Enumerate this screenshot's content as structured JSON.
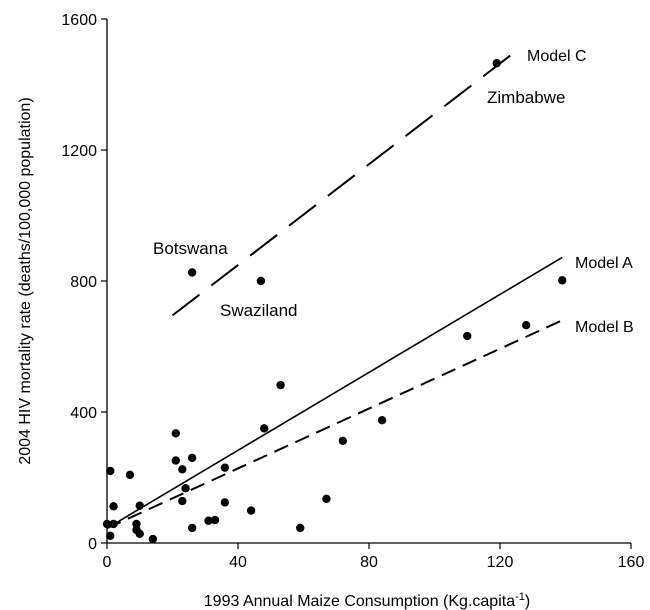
{
  "chart_data": {
    "type": "scatter",
    "xlabel": "1993 Annual Maize Consumption (Kg.capita",
    "xlabel_sup": "-1",
    "xlabel_close": ")",
    "ylabel": "2004 HIV mortality rate (deaths/100,000 population)",
    "xlim": [
      0,
      160
    ],
    "ylim": [
      0,
      1600
    ],
    "xticks": [
      "0",
      "40",
      "80",
      "120",
      "160"
    ],
    "yticks": [
      "0",
      "400",
      "800",
      "1200",
      "1600"
    ],
    "points": [
      {
        "x": 0,
        "y": 58
      },
      {
        "x": 1,
        "y": 220
      },
      {
        "x": 1,
        "y": 22
      },
      {
        "x": 2,
        "y": 112
      },
      {
        "x": 2,
        "y": 58
      },
      {
        "x": 7,
        "y": 208
      },
      {
        "x": 9,
        "y": 58
      },
      {
        "x": 9,
        "y": 40
      },
      {
        "x": 10,
        "y": 114
      },
      {
        "x": 10,
        "y": 28
      },
      {
        "x": 14,
        "y": 12
      },
      {
        "x": 21,
        "y": 335
      },
      {
        "x": 21,
        "y": 252
      },
      {
        "x": 23,
        "y": 225
      },
      {
        "x": 23,
        "y": 128
      },
      {
        "x": 24,
        "y": 167
      },
      {
        "x": 26,
        "y": 826
      },
      {
        "x": 26,
        "y": 260
      },
      {
        "x": 26,
        "y": 46
      },
      {
        "x": 31,
        "y": 68
      },
      {
        "x": 33,
        "y": 70
      },
      {
        "x": 36,
        "y": 230
      },
      {
        "x": 36,
        "y": 124
      },
      {
        "x": 44,
        "y": 99
      },
      {
        "x": 47,
        "y": 800
      },
      {
        "x": 48,
        "y": 350
      },
      {
        "x": 53,
        "y": 482
      },
      {
        "x": 59,
        "y": 46
      },
      {
        "x": 67,
        "y": 135
      },
      {
        "x": 72,
        "y": 312
      },
      {
        "x": 84,
        "y": 375
      },
      {
        "x": 110,
        "y": 632
      },
      {
        "x": 119,
        "y": 1465
      },
      {
        "x": 128,
        "y": 665
      },
      {
        "x": 139,
        "y": 802
      }
    ],
    "lines": [
      {
        "name": "Model A",
        "style": "solid",
        "x": [
          0,
          139
        ],
        "y": [
          45,
          872
        ]
      },
      {
        "name": "Model B",
        "style": "dashed",
        "x": [
          0,
          139
        ],
        "y": [
          45,
          680
        ]
      },
      {
        "name": "Model C",
        "style": "longdash",
        "x": [
          20,
          124
        ],
        "y": [
          695,
          1495
        ]
      }
    ],
    "annotations": [
      {
        "text": "Botswana"
      },
      {
        "text": "Swaziland"
      },
      {
        "text": "Zimbabwe"
      }
    ]
  }
}
